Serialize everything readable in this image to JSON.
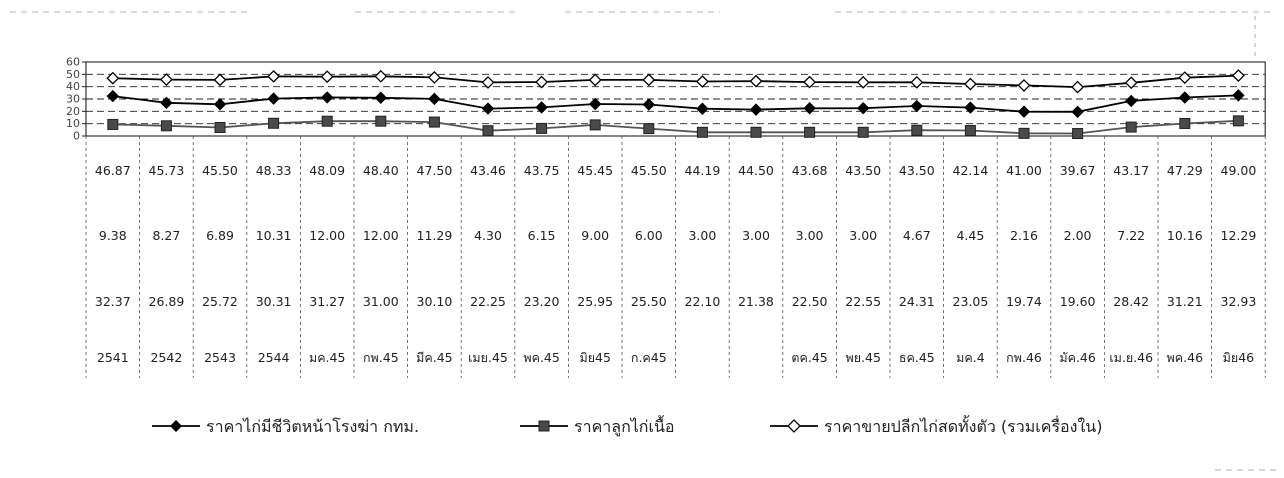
{
  "chart_data": {
    "type": "line",
    "ylim": [
      0,
      60
    ],
    "y_ticks": [
      "0",
      "10",
      "20",
      "30",
      "40",
      "50",
      "60"
    ],
    "x": [
      "2541",
      "2542",
      "2543",
      "2544",
      "มค.45",
      "กพ.45",
      "มีค.45",
      "เมย.45",
      "พค.45",
      "มิย45",
      "ก.ค45",
      "",
      "",
      "ตค.45",
      "พย.45",
      "ธค.45",
      "มค.4",
      "กพ.46",
      "มัค.46",
      "เม.ย.46",
      "พค.46",
      "มิย46"
    ],
    "series": [
      {
        "name": "ราคาขายปลีกไก่สดทั้งตัว (รวมเครื่องใน)",
        "marker": "open-diamond",
        "color": "#000000",
        "values": [
          46.87,
          45.73,
          45.5,
          48.33,
          48.09,
          48.4,
          47.5,
          43.46,
          43.75,
          45.45,
          45.5,
          44.19,
          44.5,
          43.68,
          43.5,
          43.5,
          42.14,
          41.0,
          39.67,
          43.17,
          47.29,
          49.0
        ],
        "labels": [
          "46.87",
          "45.73",
          "45.50",
          "48.33",
          "48.09",
          "48.40",
          "47.50",
          "43.46",
          "43.75",
          "45.45",
          "45.50",
          "44.19",
          "44.50",
          "43.68",
          "43.50",
          "43.50",
          "42.14",
          "41.00",
          "39.67",
          "43.17",
          "47.29",
          "49.00"
        ]
      },
      {
        "name": "ราคาลูกไก่เนื้อ",
        "marker": "filled-square",
        "color": "#555555",
        "values": [
          9.38,
          8.27,
          6.89,
          10.31,
          12.0,
          12.0,
          11.29,
          4.3,
          6.15,
          9.0,
          6.0,
          3.0,
          3.0,
          3.0,
          3.0,
          4.67,
          4.45,
          2.16,
          2.0,
          7.22,
          10.16,
          12.29
        ],
        "labels": [
          "9.38",
          "8.27",
          "6.89",
          "10.31",
          "12.00",
          "12.00",
          "11.29",
          "4.30",
          "6.15",
          "9.00",
          "6.00",
          "3.00",
          "3.00",
          "3.00",
          "3.00",
          "4.67",
          "4.45",
          "2.16",
          "2.00",
          "7.22",
          "10.16",
          "12.29"
        ]
      },
      {
        "name": "ราคาไก่มีชีวิตหน้าโรงฆ่า กทม.",
        "marker": "filled-diamond",
        "color": "#000000",
        "values": [
          32.37,
          26.89,
          25.72,
          30.31,
          31.27,
          31.0,
          30.1,
          22.25,
          23.2,
          25.95,
          25.5,
          22.1,
          21.38,
          22.5,
          22.55,
          24.31,
          23.05,
          19.74,
          19.6,
          28.42,
          31.21,
          32.93
        ],
        "labels": [
          "32.37",
          "26.89",
          "25.72",
          "30.31",
          "31.27",
          "31.00",
          "30.10",
          "22.25",
          "23.20",
          "25.95",
          "25.50",
          "22.10",
          "21.38",
          "22.50",
          "22.55",
          "24.31",
          "23.05",
          "19.74",
          "19.60",
          "28.42",
          "31.21",
          "32.93"
        ]
      }
    ],
    "legend": {
      "placement": "bottom",
      "items": [
        {
          "label": "ราคาไก่มีชีวิตหน้าโรงฆ่า กทม.",
          "marker": "filled-diamond"
        },
        {
          "label": "ราคาลูกไก่เนื้อ",
          "marker": "filled-square"
        },
        {
          "label": "ราคาขายปลีกไก่สดทั้งตัว (รวมเครื่องใน)",
          "marker": "open-diamond"
        }
      ]
    },
    "grid": true
  }
}
